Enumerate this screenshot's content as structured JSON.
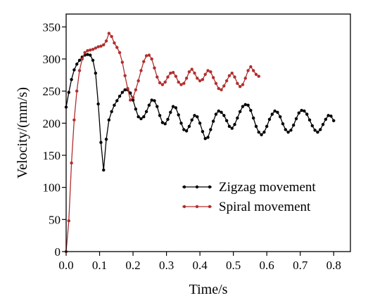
{
  "chart_data": {
    "type": "line",
    "title": "",
    "xlabel": "Time/s",
    "ylabel": "Velocity/(mm/s)",
    "xlim": [
      0.0,
      0.85
    ],
    "ylim": [
      0,
      370
    ],
    "xticks": [
      "0.0",
      "0.1",
      "0.2",
      "0.3",
      "0.4",
      "0.5",
      "0.6",
      "0.7",
      "0.8"
    ],
    "yticks": [
      "0",
      "50",
      "100",
      "150",
      "200",
      "250",
      "300",
      "350"
    ],
    "grid": false,
    "legend_position": "center-right",
    "series": [
      {
        "name": "Zigzag movement",
        "color": "#000000",
        "x": [
          0.0,
          0.008,
          0.016,
          0.024,
          0.032,
          0.04,
          0.048,
          0.056,
          0.064,
          0.072,
          0.08,
          0.088,
          0.096,
          0.104,
          0.112,
          0.12,
          0.128,
          0.136,
          0.144,
          0.152,
          0.16,
          0.168,
          0.176,
          0.184,
          0.192,
          0.2,
          0.208,
          0.216,
          0.224,
          0.232,
          0.24,
          0.248,
          0.256,
          0.264,
          0.272,
          0.28,
          0.288,
          0.296,
          0.304,
          0.312,
          0.32,
          0.328,
          0.336,
          0.344,
          0.352,
          0.36,
          0.368,
          0.376,
          0.384,
          0.392,
          0.4,
          0.408,
          0.416,
          0.424,
          0.432,
          0.44,
          0.448,
          0.456,
          0.464,
          0.472,
          0.48,
          0.488,
          0.496,
          0.504,
          0.512,
          0.52,
          0.528,
          0.536,
          0.544,
          0.552,
          0.56,
          0.568,
          0.576,
          0.584,
          0.592,
          0.6,
          0.608,
          0.616,
          0.624,
          0.632,
          0.64,
          0.648,
          0.656,
          0.664,
          0.672,
          0.68,
          0.688,
          0.696,
          0.704,
          0.712,
          0.72,
          0.728,
          0.736,
          0.744,
          0.752,
          0.76,
          0.768,
          0.776,
          0.784,
          0.792,
          0.8
        ],
        "y": [
          225,
          248,
          268,
          283,
          292,
          298,
          303,
          306,
          307,
          306,
          298,
          278,
          230,
          170,
          127,
          175,
          205,
          218,
          228,
          235,
          242,
          248,
          252,
          252,
          247,
          236,
          222,
          210,
          207,
          210,
          218,
          228,
          236,
          235,
          226,
          212,
          201,
          199,
          206,
          217,
          226,
          224,
          213,
          200,
          190,
          188,
          195,
          205,
          212,
          210,
          200,
          187,
          176,
          178,
          190,
          203,
          214,
          219,
          217,
          212,
          204,
          195,
          192,
          198,
          208,
          218,
          226,
          229,
          228,
          220,
          208,
          195,
          186,
          182,
          186,
          195,
          206,
          214,
          219,
          217,
          210,
          199,
          190,
          186,
          189,
          197,
          207,
          216,
          220,
          219,
          214,
          205,
          196,
          189,
          186,
          190,
          198,
          206,
          212,
          211,
          204
        ]
      },
      {
        "name": "Spiral movement",
        "color": "#b32e2e",
        "x": [
          0.0,
          0.008,
          0.016,
          0.024,
          0.032,
          0.04,
          0.048,
          0.056,
          0.064,
          0.072,
          0.08,
          0.088,
          0.096,
          0.104,
          0.112,
          0.12,
          0.128,
          0.136,
          0.144,
          0.152,
          0.16,
          0.168,
          0.176,
          0.184,
          0.192,
          0.2,
          0.208,
          0.216,
          0.224,
          0.232,
          0.24,
          0.248,
          0.256,
          0.264,
          0.272,
          0.28,
          0.288,
          0.296,
          0.304,
          0.312,
          0.32,
          0.328,
          0.336,
          0.344,
          0.352,
          0.36,
          0.368,
          0.376,
          0.384,
          0.392,
          0.4,
          0.408,
          0.416,
          0.424,
          0.432,
          0.44,
          0.448,
          0.456,
          0.464,
          0.472,
          0.48,
          0.488,
          0.496,
          0.504,
          0.512,
          0.52,
          0.528,
          0.536,
          0.544,
          0.552,
          0.56,
          0.568,
          0.576
        ],
        "y": [
          0,
          48,
          138,
          205,
          250,
          282,
          300,
          310,
          313,
          314,
          315,
          317,
          319,
          320,
          322,
          328,
          340,
          335,
          325,
          318,
          310,
          295,
          274,
          254,
          236,
          240,
          252,
          266,
          282,
          296,
          305,
          306,
          300,
          286,
          272,
          263,
          260,
          264,
          272,
          278,
          279,
          273,
          264,
          260,
          262,
          270,
          280,
          284,
          278,
          270,
          266,
          268,
          276,
          282,
          280,
          271,
          262,
          254,
          252,
          258,
          266,
          274,
          278,
          272,
          262,
          257,
          260,
          270,
          282,
          288,
          282,
          276,
          273
        ]
      }
    ],
    "legend": [
      {
        "label": "Zigzag movement",
        "color": "#000000"
      },
      {
        "label": "Spiral movement",
        "color": "#b32e2e"
      }
    ]
  }
}
